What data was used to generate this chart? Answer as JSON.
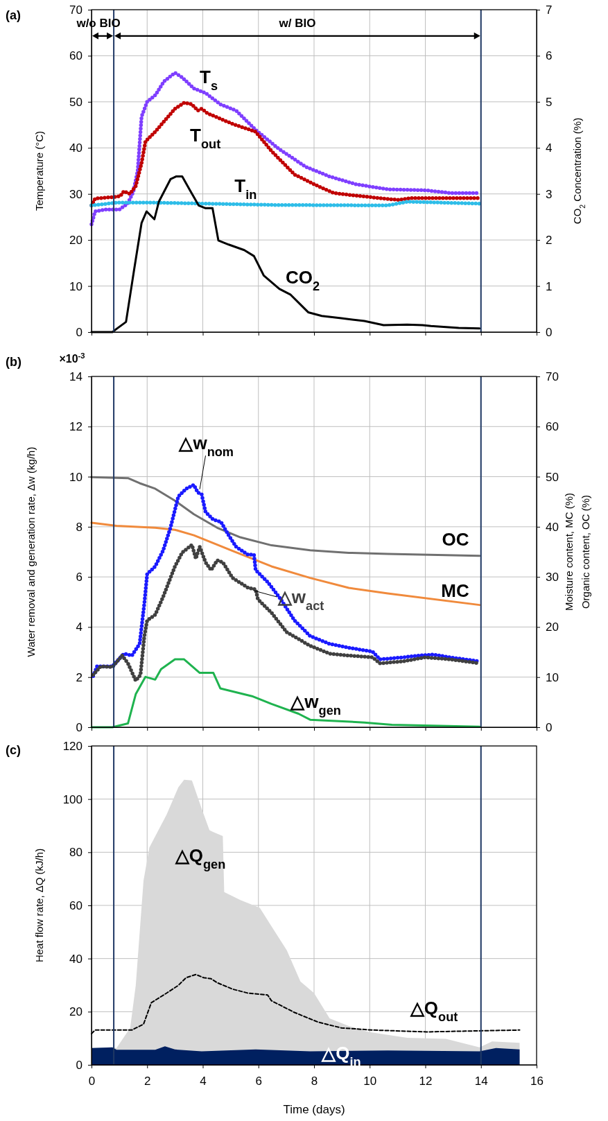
{
  "chart_data": [
    {
      "type": "line",
      "title": "(a)",
      "ylabel": "Temperature (°C)",
      "y2label": "CO$_{2}$ Concentration (%)",
      "annotations": [
        "w/o BIO",
        "w/ BIO"
      ],
      "xlim": [
        0,
        16
      ],
      "xticks": [
        0,
        2,
        4,
        6,
        8,
        10,
        12,
        14,
        16
      ],
      "ylim": [
        0,
        70
      ],
      "yticks": [
        0,
        10,
        20,
        30,
        40,
        50,
        60,
        70
      ],
      "y2lim": [
        0,
        7
      ],
      "y2ticks": [
        0,
        1,
        2,
        3,
        4,
        5,
        6,
        7
      ],
      "grid": true,
      "tick_labels": "y",
      "ref_lines": [
        {
          "axis": "x",
          "value": 0.8,
          "color": "#1f3864"
        },
        {
          "axis": "x",
          "value": 14,
          "color": "#1f3864"
        }
      ],
      "series": [
        {
          "name": "T$_{s}$",
          "color": "#7f3fff",
          "line_style": "dotted",
          "x": [
            0,
            0.13,
            0.5,
            1.0,
            1.3,
            1.5,
            1.66,
            1.8,
            2.0,
            2.3,
            2.6,
            3.0,
            3.26,
            3.68,
            4.1,
            4.65,
            5.2,
            5.9,
            6.75,
            7.7,
            8.55,
            9.5,
            10.65,
            12.0,
            12.9,
            13.95
          ],
          "values": [
            23.4,
            26.2,
            26.6,
            26.6,
            27.9,
            30.4,
            35,
            46.8,
            50,
            51.5,
            54.4,
            56.3,
            55.3,
            52.9,
            51.9,
            49.4,
            48.1,
            43.9,
            39.7,
            35.9,
            33.8,
            32.1,
            31,
            30.8,
            30.2,
            30.2
          ]
        },
        {
          "name": "T$_{out}$",
          "color": "#c00000",
          "line_style": "dotted",
          "x": [
            0,
            0.13,
            0.75,
            1.03,
            1.17,
            1.38,
            1.59,
            1.8,
            1.94,
            2.29,
            2.7,
            3.0,
            3.33,
            3.6,
            3.82,
            3.96,
            4.17,
            5.07,
            5.9,
            6.47,
            7.3,
            8.14,
            8.7,
            9.25,
            10.65,
            11.06,
            11.5,
            13.95
          ],
          "values": [
            27.5,
            29,
            29.3,
            29.5,
            30.6,
            30,
            31.7,
            36.7,
            41.4,
            43.5,
            46.4,
            48.5,
            49.8,
            49.5,
            48.1,
            48.5,
            47.5,
            45.2,
            43.5,
            39.3,
            34.2,
            31.7,
            30.2,
            29.8,
            28.9,
            28.7,
            29.1,
            29.1
          ]
        },
        {
          "name": "T$_{in}$",
          "color": "#2ebde8",
          "line_style": "dotted",
          "x": [
            0,
            0.9,
            2.29,
            6.6,
            10.65,
            11.35,
            13.95
          ],
          "values": [
            27.5,
            28.1,
            28.1,
            27.6,
            27.5,
            28.3,
            27.9
          ]
        },
        {
          "name": "CO$_{2}$",
          "color": "#000000",
          "axis": "y2",
          "line_style": "solid",
          "x": [
            0,
            0.75,
            0.9,
            1.24,
            1.52,
            1.8,
            1.98,
            2.26,
            2.42,
            2.84,
            3.05,
            3.26,
            3.54,
            3.85,
            4.1,
            4.35,
            4.56,
            4.93,
            5.49,
            5.84,
            6.19,
            6.75,
            7.16,
            7.79,
            8.28,
            8.98,
            9.81,
            10.5,
            11.35,
            11.9,
            12.2,
            13.2,
            13.95
          ],
          "values": [
            0,
            0,
            0.07,
            0.22,
            1.31,
            2.37,
            2.62,
            2.45,
            2.83,
            3.32,
            3.38,
            3.38,
            3.08,
            2.75,
            2.69,
            2.69,
            1.99,
            1.9,
            1.78,
            1.65,
            1.23,
            0.94,
            0.81,
            0.43,
            0.35,
            0.3,
            0.24,
            0.15,
            0.16,
            0.15,
            0.13,
            0.09,
            0.08
          ]
        }
      ]
    },
    {
      "type": "line",
      "title": "(b)",
      "ylabel": "Water removal and generation rate, Δw (kg/h)",
      "y2label": "Moisture content, MC (%)\nOrganic content, OC (%)",
      "annotations": [
        "×10$^{-3}$"
      ],
      "xlim": [
        0,
        16
      ],
      "xticks": [
        0,
        2,
        4,
        6,
        8,
        10,
        12,
        14,
        16
      ],
      "ylim": [
        0,
        14
      ],
      "yticks": [
        0,
        2,
        4,
        6,
        8,
        10,
        12,
        14
      ],
      "y2lim": [
        0,
        70
      ],
      "y2ticks": [
        0,
        10,
        20,
        30,
        40,
        50,
        60,
        70
      ],
      "grid": true,
      "tick_labels": "y",
      "ref_lines": [
        {
          "axis": "x",
          "value": 0.8,
          "color": "#1f3864"
        },
        {
          "axis": "x",
          "value": 14,
          "color": "#1f3864"
        }
      ],
      "series": [
        {
          "name": "OC",
          "color": "#707070",
          "axis": "y2",
          "line_style": "solid",
          "x": [
            0,
            1.31,
            1.73,
            2.29,
            3.0,
            3.68,
            4.52,
            5.35,
            6.47,
            7.86,
            9.25,
            10.65,
            13.95
          ],
          "values": [
            49.9,
            49.7,
            48.7,
            47.6,
            45.2,
            42.5,
            39.8,
            37.9,
            36.3,
            35.3,
            34.8,
            34.6,
            34.2
          ]
        },
        {
          "name": "MC",
          "color": "#f08a3c",
          "axis": "y2",
          "line_style": "solid",
          "x": [
            0,
            0.9,
            2.29,
            3.0,
            3.68,
            5.07,
            6.47,
            7.86,
            9.25,
            10.65,
            13.95
          ],
          "values": [
            40.8,
            40.2,
            39.8,
            39.4,
            38.3,
            35.2,
            32.1,
            29.8,
            27.8,
            26.7,
            24.4
          ]
        },
        {
          "name": "△w$_{nom}$",
          "color": "#1a1aff",
          "line_style": "dotted",
          "x": [
            0.06,
            0.2,
            0.75,
            1.17,
            1.45,
            1.73,
            1.9,
            2.0,
            2.29,
            2.57,
            2.84,
            3.12,
            3.4,
            3.68,
            3.82,
            3.96,
            4.1,
            4.38,
            4.65,
            4.93,
            5.2,
            5.62,
            5.84,
            5.9,
            6.33,
            6.75,
            7.3,
            7.86,
            8.55,
            9.25,
            10.1,
            10.37,
            11.2,
            11.76,
            12.3,
            12.88,
            13.95
          ],
          "values": [
            2.04,
            2.43,
            2.43,
            2.94,
            2.86,
            3.33,
            4.95,
            6.11,
            6.42,
            7.04,
            7.97,
            9.21,
            9.52,
            9.67,
            9.37,
            9.29,
            8.59,
            8.28,
            8.2,
            7.66,
            7.2,
            6.89,
            6.89,
            6.27,
            5.8,
            5.19,
            4.26,
            3.64,
            3.33,
            3.17,
            3.02,
            2.71,
            2.79,
            2.86,
            2.9,
            2.79,
            2.63
          ]
        },
        {
          "name": "△w$_{act}$",
          "color": "#404040",
          "line_style": "dotted",
          "x": [
            0.06,
            0.33,
            0.75,
            1.1,
            1.31,
            1.59,
            1.76,
            1.9,
            2.0,
            2.29,
            2.57,
            3.0,
            3.26,
            3.61,
            3.75,
            3.89,
            4.1,
            4.3,
            4.52,
            4.72,
            5.07,
            5.62,
            5.9,
            5.98,
            6.47,
            7.02,
            7.86,
            8.55,
            9.25,
            10.1,
            10.37,
            11.2,
            12.0,
            12.88,
            13.95
          ],
          "values": [
            2.09,
            2.43,
            2.4,
            2.86,
            2.55,
            1.86,
            2.09,
            3.64,
            4.26,
            4.49,
            5.19,
            6.42,
            6.97,
            7.28,
            6.73,
            7.2,
            6.58,
            6.27,
            6.66,
            6.58,
            5.96,
            5.57,
            5.5,
            5.11,
            4.57,
            3.79,
            3.25,
            2.94,
            2.86,
            2.79,
            2.55,
            2.63,
            2.79,
            2.71,
            2.55
          ]
        },
        {
          "name": "△w$_{gen}$",
          "color": "#1fb34f",
          "line_style": "solid",
          "x": [
            0,
            0.75,
            1.31,
            1.59,
            1.94,
            2.29,
            2.5,
            3.0,
            3.33,
            3.89,
            4.38,
            4.63,
            5.77,
            6.47,
            7.44,
            7.86,
            9.81,
            10.8,
            13.95
          ],
          "values": [
            0,
            0,
            0.15,
            1.32,
            2.01,
            1.9,
            2.32,
            2.71,
            2.71,
            2.17,
            2.17,
            1.55,
            1.24,
            0.93,
            0.54,
            0.3,
            0.19,
            0.1,
            0.02
          ]
        }
      ]
    },
    {
      "type": "line",
      "title": "(c)",
      "xlabel": "Time (days)",
      "ylabel": "Heat flow rate, ΔQ (kJ/h)",
      "xlim": [
        0,
        16
      ],
      "xticks": [
        0,
        2,
        4,
        6,
        8,
        10,
        12,
        14,
        16
      ],
      "ylim": [
        0,
        120
      ],
      "yticks": [
        0,
        20,
        40,
        60,
        80,
        100,
        120
      ],
      "grid": true,
      "ref_lines": [
        {
          "axis": "x",
          "value": 0.8,
          "color": "#1f3864"
        },
        {
          "axis": "x",
          "value": 14,
          "color": "#1f3864"
        }
      ],
      "series": [
        {
          "name": "△Q$_{gen}$",
          "type": "area",
          "color": "#d9d9d9",
          "x": [
            0,
            0.75,
            0.9,
            1.39,
            1.59,
            1.87,
            2.08,
            2.7,
            3.12,
            3.33,
            3.61,
            3.96,
            4.24,
            4.38,
            4.72,
            4.77,
            5.35,
            6.05,
            6.4,
            7.02,
            7.51,
            8.0,
            8.56,
            9.25,
            9.95,
            11.35,
            12.74,
            13.95,
            14.4,
            15.39
          ],
          "values": [
            6.3,
            6.6,
            6.3,
            13.9,
            29.9,
            69.3,
            81.8,
            94.2,
            104.4,
            107.3,
            107,
            96.4,
            88.3,
            87.6,
            86.1,
            65,
            62,
            59.1,
            53.3,
            43.1,
            31.4,
            27,
            17.5,
            14.6,
            12.4,
            10.2,
            9.8,
            6.6,
            8.8,
            8.3
          ]
        },
        {
          "name": "△Q$_{in}$",
          "type": "area",
          "color": "#002060",
          "x": [
            0,
            0.75,
            0.9,
            2.29,
            2.64,
            3.0,
            3.96,
            5.9,
            7.86,
            10.65,
            13.95,
            14.54,
            15.39
          ],
          "values": [
            6.3,
            6.6,
            5.7,
            5.7,
            7,
            5.8,
            5.1,
            5.8,
            5.1,
            5.4,
            5.1,
            6.3,
            5.8
          ]
        },
        {
          "name": "△Q$_{out}$",
          "color": "#000000",
          "line_style": "dashed",
          "x": [
            0,
            0.13,
            1.45,
            1.87,
            2.15,
            2.7,
            3.12,
            3.4,
            3.75,
            4.03,
            4.3,
            4.52,
            5.07,
            5.62,
            6.33,
            6.47,
            7.3,
            8.14,
            8.98,
            10.1,
            12.04,
            13.44,
            15.39
          ],
          "values": [
            11.7,
            13.1,
            13.1,
            15.3,
            23.4,
            27,
            29.9,
            32.8,
            34,
            32.8,
            32.4,
            30.9,
            28.5,
            27,
            26.3,
            24.1,
            19.7,
            16.1,
            13.9,
            13.1,
            12.4,
            12.7,
            13.1
          ]
        }
      ]
    }
  ]
}
